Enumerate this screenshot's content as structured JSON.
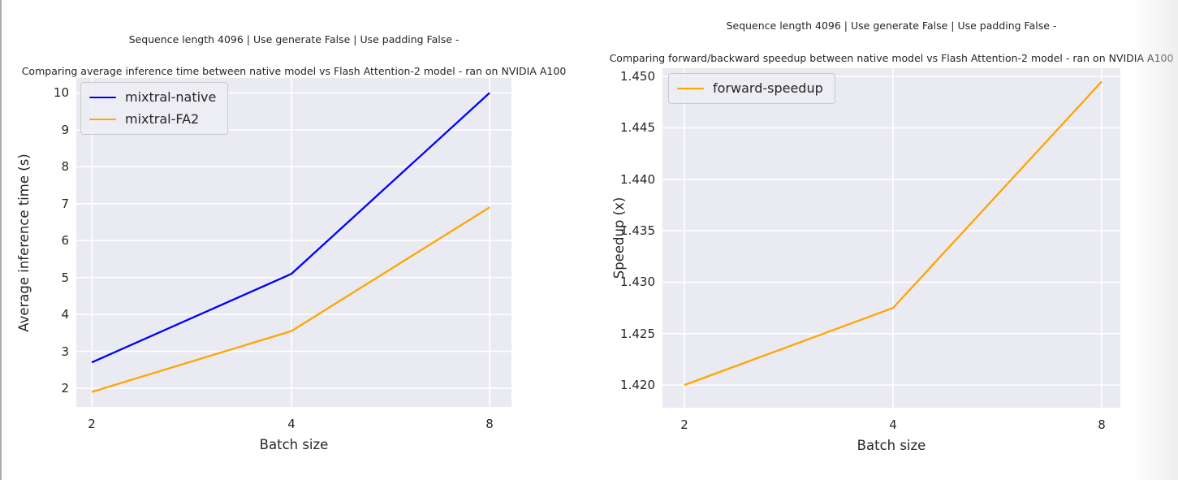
{
  "figure": {
    "background": "#ffffff",
    "plot_background": "#eaeaf2",
    "grid_color": "#ffffff",
    "text_color": "#262626",
    "legend_background": "rgba(237,237,244,0.85)",
    "legend_border": "#cacaca"
  },
  "chart_data": [
    {
      "type": "line",
      "suptitle": "Sequence length 4096 | Use generate False | Use padding False -",
      "title": "Comparing average inference time between native model vs Flash Attention-2 model - ran on NVIDIA A100",
      "xlabel": "Batch size",
      "ylabel": "Average inference time (s)",
      "xscale": "log2",
      "grid": true,
      "legend_position": "upper-left",
      "x": [
        2,
        4,
        8
      ],
      "xticklabels": [
        "2",
        "4",
        "8"
      ],
      "yticks": [
        2,
        3,
        4,
        5,
        6,
        7,
        8,
        9,
        10
      ],
      "yticklabels": [
        "2",
        "3",
        "4",
        "5",
        "6",
        "7",
        "8",
        "9",
        "10"
      ],
      "ylim": [
        1.495,
        10.405
      ],
      "series": [
        {
          "name": "mixtral-native",
          "color": "#0000ff",
          "values": [
            2.7,
            5.1,
            10.0
          ]
        },
        {
          "name": "mixtral-FA2",
          "color": "#ffa500",
          "values": [
            1.9,
            3.55,
            6.9
          ]
        }
      ]
    },
    {
      "type": "line",
      "suptitle": "Sequence length 4096 | Use generate False | Use padding False -",
      "title": "Comparing forward/backward speedup between native model vs Flash Attention-2 model - ran on NVIDIA A100",
      "xlabel": "Batch size",
      "ylabel": "Speedup (x)",
      "xscale": "log2",
      "grid": true,
      "legend_position": "upper-left",
      "x": [
        2,
        4,
        8
      ],
      "xticklabels": [
        "2",
        "4",
        "8"
      ],
      "yticks": [
        1.42,
        1.425,
        1.43,
        1.435,
        1.44,
        1.445,
        1.45
      ],
      "yticklabels": [
        "1.420",
        "1.425",
        "1.430",
        "1.435",
        "1.440",
        "1.445",
        "1.450"
      ],
      "ylim": [
        1.4178,
        1.4508
      ],
      "series": [
        {
          "name": "forward-speedup",
          "color": "#ffa500",
          "values": [
            1.42,
            1.4275,
            1.4495
          ]
        }
      ]
    }
  ]
}
